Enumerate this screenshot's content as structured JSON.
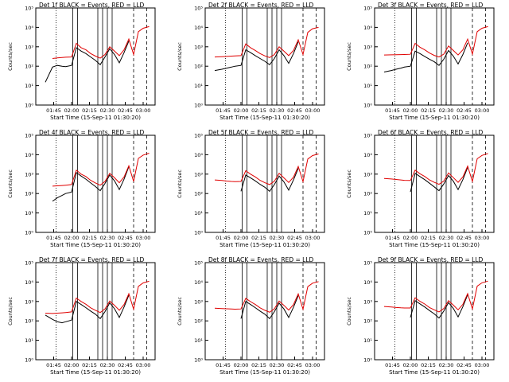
{
  "colors": {
    "events": "#000000",
    "lld": "#e00000",
    "frame": "#000000",
    "background": "#ffffff"
  },
  "chart_data": [
    {
      "type": "line",
      "title": "Det 1f BLACK = Events, RED = LLD",
      "ylabel": "Counts/sec",
      "xlabel": "Start Time (15-Sep-11 01:30:20)",
      "xtick_labels": [
        "01:45",
        "02:00",
        "02:15",
        "02:30",
        "02:45",
        "03:00"
      ],
      "ytick_labels": [
        "10⁰",
        "10¹",
        "10²",
        "10³",
        "10⁴",
        "10⁵"
      ],
      "y_scale": "log",
      "ylim": [
        1,
        100000
      ],
      "xlim": [
        "01:30",
        "03:10"
      ],
      "x": [
        "01:38",
        "01:44",
        "01:48",
        "01:52",
        "01:55",
        "02:00",
        "02:04",
        "02:08",
        "02:12",
        "02:16",
        "02:20",
        "02:24",
        "02:28",
        "02:32",
        "02:36",
        "02:40",
        "02:44",
        "02:48",
        "02:52",
        "02:56",
        "03:00",
        "03:05"
      ],
      "series": [
        {
          "name": "Events",
          "values": [
            15,
            90,
            110,
            100,
            95,
            110,
            900,
            600,
            450,
            300,
            200,
            120,
            300,
            800,
            400,
            150,
            500,
            2000,
            null,
            null,
            null,
            null
          ]
        },
        {
          "name": "LLD",
          "values": [
            null,
            250,
            270,
            280,
            290,
            300,
            1500,
            900,
            700,
            450,
            330,
            260,
            400,
            1000,
            600,
            350,
            700,
            2500,
            400,
            6000,
            9000,
            11000
          ]
        }
      ]
    },
    {
      "type": "line",
      "title": "Det 2f BLACK = Events, RED = LLD",
      "ylabel": "Counts/sec",
      "xlabel": "Start Time (15-Sep-11 01:30:20)",
      "xtick_labels": [
        "01:45",
        "02:00",
        "02:15",
        "02:30",
        "02:45",
        "03:00"
      ],
      "ytick_labels": [
        "10⁰",
        "10¹",
        "10²",
        "10³",
        "10⁴",
        "10⁵"
      ],
      "y_scale": "log",
      "ylim": [
        1,
        100000
      ],
      "xlim": [
        "01:30",
        "03:10"
      ],
      "x": [
        "01:38",
        "01:44",
        "01:48",
        "01:52",
        "01:55",
        "02:00",
        "02:04",
        "02:08",
        "02:12",
        "02:16",
        "02:20",
        "02:24",
        "02:28",
        "02:32",
        "02:36",
        "02:40",
        "02:44",
        "02:48",
        "02:52",
        "02:56",
        "03:00",
        "03:05"
      ],
      "series": [
        {
          "name": "Events",
          "values": [
            60,
            70,
            80,
            90,
            100,
            110,
            700,
            500,
            350,
            250,
            180,
            120,
            250,
            700,
            350,
            140,
            450,
            1800,
            null,
            null,
            null,
            null
          ]
        },
        {
          "name": "LLD",
          "values": [
            300,
            310,
            320,
            330,
            340,
            350,
            1400,
            900,
            650,
            450,
            340,
            280,
            400,
            1000,
            600,
            350,
            650,
            2300,
            400,
            5500,
            8500,
            10000
          ]
        }
      ]
    },
    {
      "type": "line",
      "title": "Det 3f BLACK = Events, RED = LLD",
      "ylabel": "Counts/sec",
      "xlabel": "Start Time (15-Sep-11 01:30:20)",
      "xtick_labels": [
        "01:45",
        "02:00",
        "02:15",
        "02:30",
        "02:45",
        "03:00"
      ],
      "ytick_labels": [
        "10⁰",
        "10¹",
        "10²",
        "10³",
        "10⁴",
        "10⁵"
      ],
      "y_scale": "log",
      "ylim": [
        1,
        100000
      ],
      "xlim": [
        "01:30",
        "03:10"
      ],
      "x": [
        "01:38",
        "01:44",
        "01:48",
        "01:52",
        "01:55",
        "02:00",
        "02:04",
        "02:08",
        "02:12",
        "02:16",
        "02:20",
        "02:24",
        "02:28",
        "02:32",
        "02:36",
        "02:40",
        "02:44",
        "02:48",
        "02:52",
        "02:56",
        "03:00",
        "03:05"
      ],
      "series": [
        {
          "name": "Events",
          "values": [
            50,
            60,
            70,
            80,
            90,
            100,
            600,
            450,
            320,
            230,
            170,
            110,
            230,
            650,
            330,
            130,
            400,
            1600,
            null,
            null,
            null,
            null
          ]
        },
        {
          "name": "LLD",
          "values": [
            380,
            385,
            390,
            395,
            400,
            410,
            1500,
            950,
            700,
            480,
            360,
            300,
            420,
            1100,
            650,
            380,
            700,
            2500,
            420,
            6000,
            9000,
            11000
          ]
        }
      ]
    },
    {
      "type": "line",
      "title": "Det 4f BLACK = Events, RED = LLD",
      "ylabel": "Counts/sec",
      "xlabel": "Start Time (15-Sep-11 01:30:20)",
      "xtick_labels": [
        "01:45",
        "02:00",
        "02:15",
        "02:30",
        "02:45",
        "03:00"
      ],
      "ytick_labels": [
        "10⁰",
        "10¹",
        "10²",
        "10³",
        "10⁴",
        "10⁵"
      ],
      "y_scale": "log",
      "ylim": [
        1,
        100000
      ],
      "xlim": [
        "01:30",
        "03:10"
      ],
      "x": [
        "01:38",
        "01:44",
        "01:48",
        "01:52",
        "01:55",
        "02:00",
        "02:04",
        "02:08",
        "02:12",
        "02:16",
        "02:20",
        "02:24",
        "02:28",
        "02:32",
        "02:36",
        "02:40",
        "02:44",
        "02:48",
        "02:52",
        "02:56",
        "03:00",
        "03:05"
      ],
      "series": [
        {
          "name": "Events",
          "values": [
            null,
            40,
            60,
            80,
            100,
            120,
            1200,
            800,
            550,
            350,
            230,
            140,
            330,
            900,
            450,
            160,
            550,
            2400,
            null,
            null,
            null,
            null
          ]
        },
        {
          "name": "LLD",
          "values": [
            null,
            240,
            250,
            260,
            270,
            290,
            1600,
            1000,
            750,
            480,
            350,
            270,
            420,
            1100,
            650,
            360,
            720,
            2700,
            420,
            6500,
            9500,
            12000
          ]
        }
      ]
    },
    {
      "type": "line",
      "title": "Det 5f BLACK = Events, RED = LLD",
      "ylabel": "Counts/sec",
      "xlabel": "Start Time (15-Sep-11 01:30:20)",
      "xtick_labels": [
        "01:45",
        "02:00",
        "02:15",
        "02:30",
        "02:45",
        "03:00"
      ],
      "ytick_labels": [
        "10⁰",
        "10¹",
        "10²",
        "10³",
        "10⁴",
        "10⁵"
      ],
      "y_scale": "log",
      "ylim": [
        1,
        100000
      ],
      "xlim": [
        "01:30",
        "03:10"
      ],
      "x": [
        "01:38",
        "01:44",
        "01:48",
        "01:52",
        "01:55",
        "02:00",
        "02:04",
        "02:08",
        "02:12",
        "02:16",
        "02:20",
        "02:24",
        "02:28",
        "02:32",
        "02:36",
        "02:40",
        "02:44",
        "02:48",
        "02:52",
        "02:56",
        "03:00",
        "03:05"
      ],
      "series": [
        {
          "name": "Events",
          "values": [
            null,
            null,
            null,
            null,
            null,
            130,
            900,
            650,
            450,
            300,
            210,
            130,
            290,
            800,
            400,
            150,
            500,
            2000,
            null,
            null,
            null,
            null
          ]
        },
        {
          "name": "LLD",
          "values": [
            500,
            470,
            440,
            420,
            410,
            420,
            1500,
            1000,
            720,
            480,
            360,
            290,
            430,
            1100,
            640,
            370,
            700,
            2500,
            410,
            6000,
            9000,
            11000
          ]
        }
      ]
    },
    {
      "type": "line",
      "title": "Det 6f BLACK = Events, RED = LLD",
      "ylabel": "Counts/sec",
      "xlabel": "Start Time (15-Sep-11 01:30:20)",
      "xtick_labels": [
        "01:45",
        "02:00",
        "02:15",
        "02:30",
        "02:45",
        "03:00"
      ],
      "ytick_labels": [
        "10⁰",
        "10¹",
        "10²",
        "10³",
        "10⁴",
        "10⁵"
      ],
      "y_scale": "log",
      "ylim": [
        1,
        100000
      ],
      "xlim": [
        "01:30",
        "03:10"
      ],
      "x": [
        "01:38",
        "01:44",
        "01:48",
        "01:52",
        "01:55",
        "02:00",
        "02:04",
        "02:08",
        "02:12",
        "02:16",
        "02:20",
        "02:24",
        "02:28",
        "02:32",
        "02:36",
        "02:40",
        "02:44",
        "02:48",
        "02:52",
        "02:56",
        "03:00",
        "03:05"
      ],
      "series": [
        {
          "name": "Events",
          "values": [
            null,
            null,
            null,
            null,
            null,
            120,
            1100,
            750,
            520,
            340,
            220,
            140,
            310,
            850,
            430,
            160,
            520,
            2200,
            null,
            null,
            null,
            null
          ]
        },
        {
          "name": "LLD",
          "values": [
            600,
            560,
            530,
            500,
            480,
            470,
            1600,
            1050,
            760,
            500,
            380,
            300,
            440,
            1150,
            660,
            380,
            720,
            2600,
            420,
            6200,
            9200,
            11500
          ]
        }
      ]
    },
    {
      "type": "line",
      "title": "Det 7f BLACK = Events, RED = LLD",
      "ylabel": "Counts/sec",
      "xlabel": "Start Time (15-Sep-11 01:30:20)",
      "xtick_labels": [
        "01:45",
        "02:00",
        "02:15",
        "02:30",
        "02:45",
        "03:00"
      ],
      "ytick_labels": [
        "10⁰",
        "10¹",
        "10²",
        "10³",
        "10⁴",
        "10⁵"
      ],
      "y_scale": "log",
      "ylim": [
        1,
        100000
      ],
      "xlim": [
        "01:30",
        "03:10"
      ],
      "x": [
        "01:38",
        "01:44",
        "01:48",
        "01:52",
        "01:55",
        "02:00",
        "02:04",
        "02:08",
        "02:12",
        "02:16",
        "02:20",
        "02:24",
        "02:28",
        "02:32",
        "02:36",
        "02:40",
        "02:44",
        "02:48",
        "02:52",
        "02:56",
        "03:00",
        "03:05"
      ],
      "series": [
        {
          "name": "Events",
          "values": [
            200,
            120,
            90,
            80,
            90,
            110,
            1000,
            700,
            480,
            320,
            220,
            130,
            300,
            850,
            420,
            150,
            520,
            2100,
            null,
            null,
            null,
            null
          ]
        },
        {
          "name": "LLD",
          "values": [
            250,
            240,
            250,
            260,
            270,
            290,
            1500,
            1000,
            720,
            470,
            350,
            270,
            410,
            1050,
            630,
            350,
            700,
            2500,
            400,
            6000,
            9000,
            11000
          ]
        }
      ]
    },
    {
      "type": "line",
      "title": "Det 8f BLACK = Events, RED = LLD",
      "ylabel": "Counts/sec",
      "xlabel": "Start Time (15-Sep-11 01:30:20)",
      "xtick_labels": [
        "01:45",
        "02:00",
        "02:15",
        "02:30",
        "02:45",
        "03:00"
      ],
      "ytick_labels": [
        "10⁰",
        "10¹",
        "10²",
        "10³",
        "10⁴",
        "10⁵"
      ],
      "y_scale": "log",
      "ylim": [
        1,
        100000
      ],
      "xlim": [
        "01:30",
        "03:10"
      ],
      "x": [
        "01:38",
        "01:44",
        "01:48",
        "01:52",
        "01:55",
        "02:00",
        "02:04",
        "02:08",
        "02:12",
        "02:16",
        "02:20",
        "02:24",
        "02:28",
        "02:32",
        "02:36",
        "02:40",
        "02:44",
        "02:48",
        "02:52",
        "02:56",
        "03:00",
        "03:05"
      ],
      "series": [
        {
          "name": "Events",
          "values": [
            null,
            null,
            null,
            null,
            null,
            130,
            1000,
            700,
            480,
            320,
            220,
            130,
            300,
            820,
            410,
            150,
            500,
            2000,
            null,
            null,
            null,
            null
          ]
        },
        {
          "name": "LLD",
          "values": [
            450,
            430,
            420,
            410,
            400,
            410,
            1450,
            980,
            700,
            470,
            350,
            280,
            420,
            1050,
            630,
            360,
            690,
            2450,
            400,
            5800,
            8800,
            10500
          ]
        }
      ]
    },
    {
      "type": "line",
      "title": "Det 9f BLACK = Events, RED = LLD",
      "ylabel": "Counts/sec",
      "xlabel": "Start Time (15-Sep-11 01:30:20)",
      "xtick_labels": [
        "01:45",
        "02:00",
        "02:15",
        "02:30",
        "02:45",
        "03:00"
      ],
      "ytick_labels": [
        "10⁰",
        "10¹",
        "10²",
        "10³",
        "10⁴",
        "10⁵"
      ],
      "y_scale": "log",
      "ylim": [
        1,
        100000
      ],
      "xlim": [
        "01:30",
        "03:10"
      ],
      "x": [
        "01:38",
        "01:44",
        "01:48",
        "01:52",
        "01:55",
        "02:00",
        "02:04",
        "02:08",
        "02:12",
        "02:16",
        "02:20",
        "02:24",
        "02:28",
        "02:32",
        "02:36",
        "02:40",
        "02:44",
        "02:48",
        "02:52",
        "02:56",
        "03:00",
        "03:05"
      ],
      "series": [
        {
          "name": "Events",
          "values": [
            null,
            null,
            null,
            null,
            null,
            150,
            1100,
            750,
            520,
            340,
            230,
            140,
            320,
            880,
            440,
            160,
            540,
            2200,
            null,
            null,
            null,
            null
          ]
        },
        {
          "name": "LLD",
          "values": [
            550,
            520,
            490,
            470,
            460,
            460,
            1550,
            1020,
            740,
            490,
            370,
            290,
            430,
            1100,
            650,
            370,
            710,
            2550,
            410,
            6100,
            9100,
            11200
          ]
        }
      ]
    }
  ]
}
